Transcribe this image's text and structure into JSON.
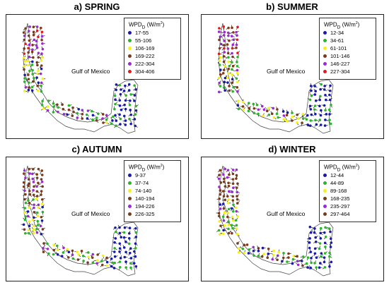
{
  "panels": [
    {
      "title": "a) SPRING",
      "legend_title_prefix": "WPD",
      "legend_title_sub": "D",
      "legend_title_unit": " (W/m",
      "legend_title_sup": "2",
      "legend_title_close": ")",
      "map_label": "Gulf of Mexico",
      "legend": [
        {
          "label": "17-55",
          "color": "#1a1aa8"
        },
        {
          "label": "55-106",
          "color": "#2bb52b"
        },
        {
          "label": "106-169",
          "color": "#f2f21a"
        },
        {
          "label": "169-222",
          "color": "#7a3b1a"
        },
        {
          "label": "222-304",
          "color": "#9b2bd1"
        },
        {
          "label": "304-406",
          "color": "#e61a1a"
        }
      ]
    },
    {
      "title": "b) SUMMER",
      "legend_title_prefix": "WPD",
      "legend_title_sub": "D",
      "legend_title_unit": " (W/m",
      "legend_title_sup": "2",
      "legend_title_close": ")",
      "map_label": "Gulf of Mexico",
      "legend": [
        {
          "label": "12-34",
          "color": "#1a1aa8"
        },
        {
          "label": "34-61",
          "color": "#2bb52b"
        },
        {
          "label": "61-101",
          "color": "#f2f21a"
        },
        {
          "label": "101-146",
          "color": "#7a3b1a"
        },
        {
          "label": "146-227",
          "color": "#9b2bd1"
        },
        {
          "label": "227-304",
          "color": "#e61a1a"
        }
      ]
    },
    {
      "title": "c) AUTUMN",
      "legend_title_prefix": "WPD",
      "legend_title_sub": "D",
      "legend_title_unit": " (W/m",
      "legend_title_sup": "2",
      "legend_title_close": ")",
      "map_label": "Gulf of Mexico",
      "legend": [
        {
          "label": "9-37",
          "color": "#1a1aa8"
        },
        {
          "label": "37-74",
          "color": "#2bb52b"
        },
        {
          "label": "74-140",
          "color": "#f2f21a"
        },
        {
          "label": "140-194",
          "color": "#7a3b1a"
        },
        {
          "label": "194-226",
          "color": "#9b2bd1"
        },
        {
          "label": "226-325",
          "color": "#7a3b1a"
        }
      ]
    },
    {
      "title": "d) WINTER",
      "legend_title_prefix": "WPD",
      "legend_title_sub": "D",
      "legend_title_unit": " (W/m",
      "legend_title_sup": "2",
      "legend_title_close": ")",
      "map_label": "Gulf of Mexico",
      "legend": [
        {
          "label": "12-44",
          "color": "#1a1aa8"
        },
        {
          "label": "44-89",
          "color": "#2bb52b"
        },
        {
          "label": "89-168",
          "color": "#f2f21a"
        },
        {
          "label": "168-235",
          "color": "#7a3b1a"
        },
        {
          "label": "235-297",
          "color": "#9b2bd1"
        },
        {
          "label": "297-464",
          "color": "#7a3b1a"
        }
      ]
    }
  ]
}
